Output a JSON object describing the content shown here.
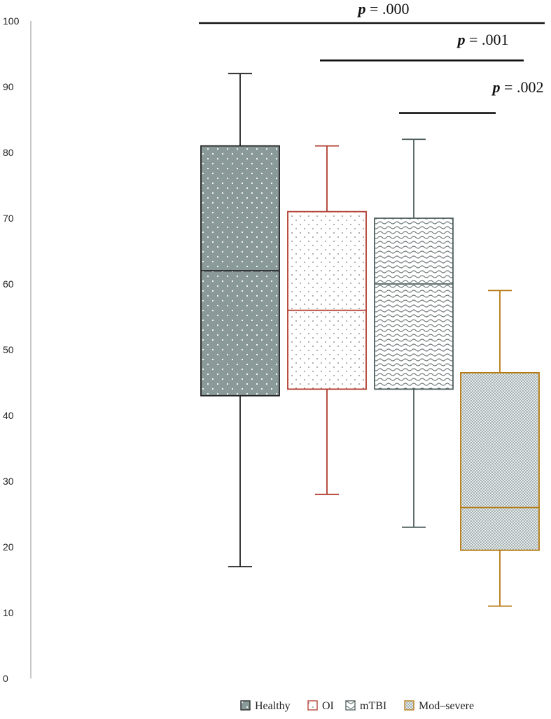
{
  "chart_data": {
    "type": "box",
    "y_ticks": [
      "0",
      "10",
      "20",
      "30",
      "40",
      "50",
      "60",
      "70",
      "80",
      "90",
      "100"
    ],
    "ylim": [
      0,
      100
    ],
    "grid": false,
    "legend_position": "bottom",
    "series": [
      {
        "name": "Healthy",
        "whisker_low": 17,
        "q1": 43,
        "median": 62,
        "q3": 81,
        "whisker_high": 92,
        "color": "#222222",
        "fill": "#8a9a99",
        "pattern": "dots-white"
      },
      {
        "name": "OI",
        "whisker_low": 28,
        "q1": 44,
        "median": 56,
        "q3": 71,
        "whisker_high": 81,
        "color": "#b03a2e",
        "fill": "#ffffff",
        "pattern": "dots-grey"
      },
      {
        "name": "mTBI",
        "whisker_low": 23,
        "q1": 44,
        "median": 60,
        "q3": 70,
        "whisker_high": 82,
        "color": "#4f5f5e",
        "fill": "#ffffff",
        "pattern": "waves"
      },
      {
        "name": "Mod–severe",
        "whisker_low": 11,
        "q1": 19.5,
        "median": 26,
        "q3": 46.5,
        "whisker_high": 59,
        "color": "#b5770f",
        "fill": "#dfe6e5",
        "pattern": "checker"
      }
    ],
    "significance": [
      {
        "from": "Healthy",
        "to": "Mod–severe",
        "p_symbol": "p",
        "p_value": " = .000",
        "y_level": 100
      },
      {
        "from": "OI",
        "to": "Mod–severe",
        "p_symbol": "p",
        "p_value": " = .001",
        "y_level": 94
      },
      {
        "from": "mTBI",
        "to": "Mod–severe",
        "p_symbol": "p",
        "p_value": " = .002",
        "y_level": 86
      }
    ]
  }
}
